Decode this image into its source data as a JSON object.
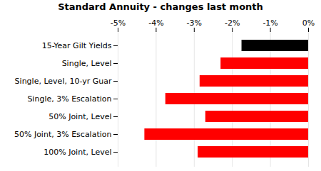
{
  "chart_data": {
    "type": "bar",
    "orientation": "horizontal",
    "title": "Standard Annuity - changes last month",
    "categories": [
      "100% Joint, Level",
      "50% Joint, 3% Escalation",
      "50% Joint, Level",
      "Single, 3% Escalation",
      "Single, Level, 10-yr Guar",
      "Single, Level",
      "15-Year Gilt Yields"
    ],
    "values": [
      -2.9,
      -4.3,
      -2.7,
      -3.75,
      -2.85,
      -2.3,
      -1.75
    ],
    "colors": [
      "#ff0000",
      "#ff0000",
      "#ff0000",
      "#ff0000",
      "#ff0000",
      "#ff0000",
      "#000000"
    ],
    "xlim": [
      -5.0,
      0.0
    ],
    "xticks": [
      {
        "value": -5,
        "label": "-5%"
      },
      {
        "value": -4,
        "label": "-4%"
      },
      {
        "value": -3,
        "label": "-3%"
      },
      {
        "value": -2,
        "label": "-2%"
      },
      {
        "value": -1,
        "label": "-1%"
      },
      {
        "value": 0,
        "label": "0%"
      }
    ],
    "grid": true
  }
}
